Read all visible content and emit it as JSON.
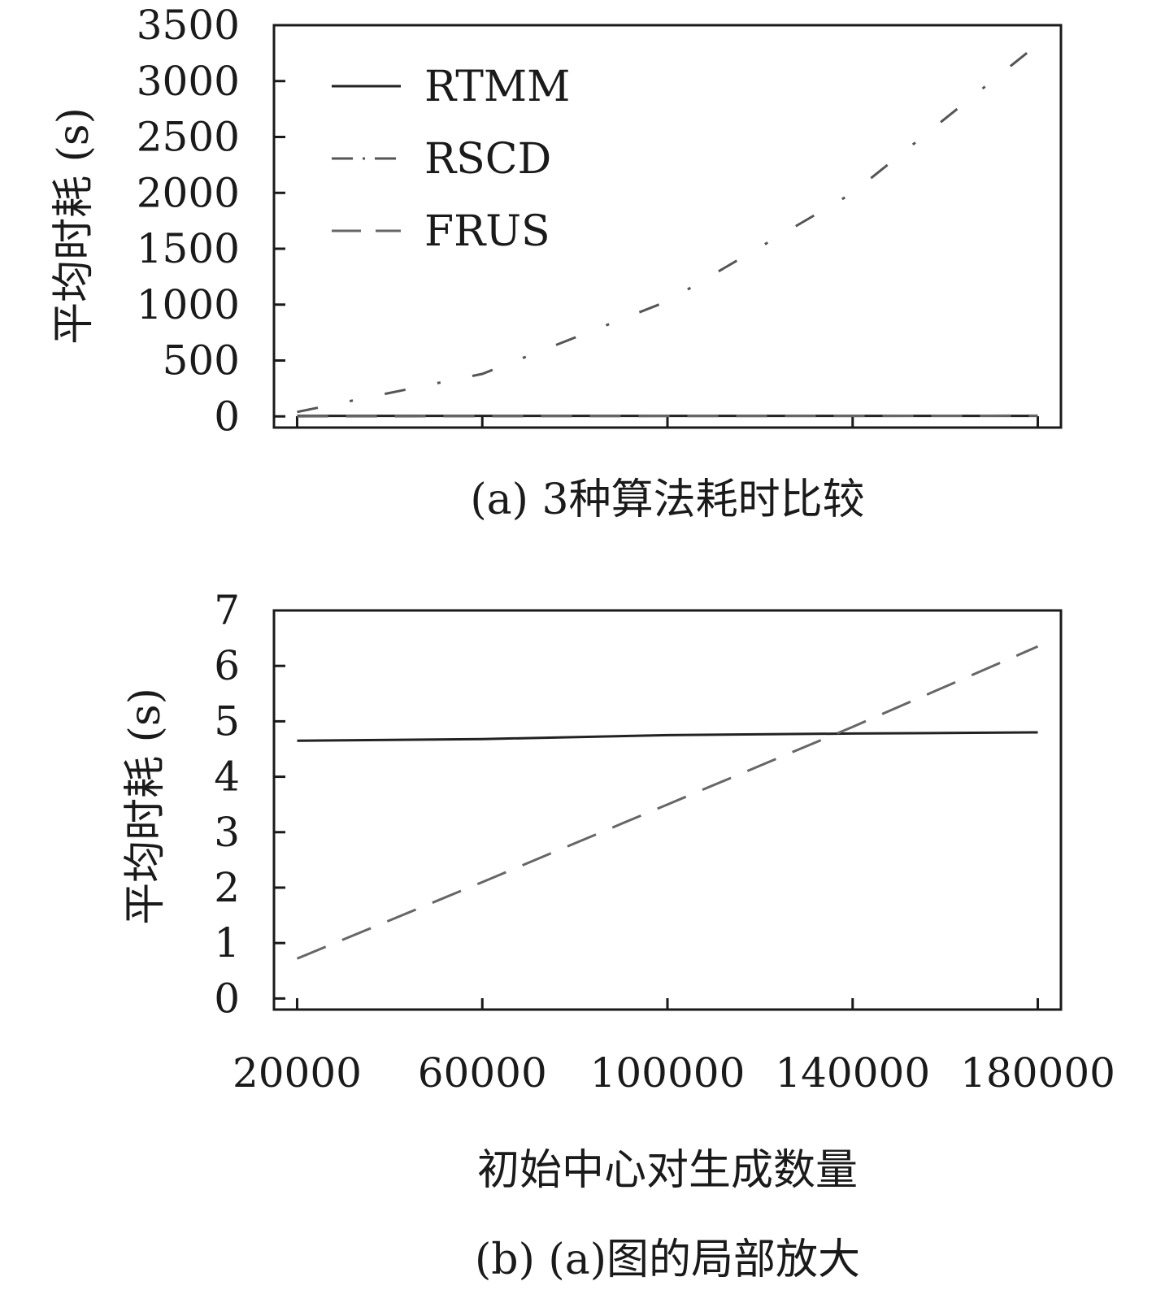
{
  "chart_data": [
    {
      "type": "line",
      "x": [
        20000,
        60000,
        100000,
        140000,
        180000
      ],
      "xlim": [
        15000,
        185000
      ],
      "ylim": [
        -100,
        3500
      ],
      "yticks": [
        0,
        500,
        1000,
        1500,
        2000,
        2500,
        3000,
        3500
      ],
      "ylabel": "平均时耗 (s)",
      "caption": "(a) 3种算法耗时比较",
      "legend": {
        "position": "top-left"
      },
      "series": [
        {
          "name": "RTMM",
          "style": "solid",
          "color": "#222222",
          "values": [
            4.6,
            4.7,
            4.7,
            4.8,
            4.8
          ]
        },
        {
          "name": "RSCD",
          "style": "dashdot",
          "color": "#555555",
          "values": [
            40,
            380,
            1030,
            2000,
            3330
          ]
        },
        {
          "name": "FRUS",
          "style": "dashed",
          "color": "#666666",
          "values": [
            0.7,
            2.1,
            3.5,
            4.9,
            6.3
          ]
        }
      ]
    },
    {
      "type": "line",
      "x": [
        20000,
        60000,
        100000,
        140000,
        180000
      ],
      "xlim": [
        15000,
        185000
      ],
      "ylim": [
        -0.2,
        7
      ],
      "yticks": [
        0,
        1,
        2,
        3,
        4,
        5,
        6,
        7
      ],
      "xticks": [
        "20000",
        "60000",
        "100000",
        "140000",
        "180000"
      ],
      "xlabel": "初始中心对生成数量",
      "ylabel": "平均时耗 (s)",
      "caption": "(b) (a)图的局部放大",
      "series": [
        {
          "name": "RTMM",
          "style": "solid",
          "color": "#222222",
          "values": [
            4.65,
            4.68,
            4.75,
            4.78,
            4.8
          ]
        },
        {
          "name": "FRUS",
          "style": "dashed",
          "color": "#666666",
          "values": [
            0.72,
            2.1,
            3.5,
            4.9,
            6.35
          ]
        }
      ]
    }
  ]
}
